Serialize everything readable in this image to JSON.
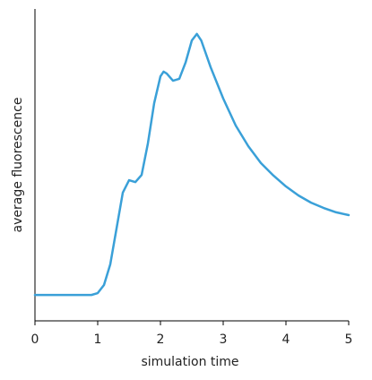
{
  "chart_data": {
    "type": "line",
    "xlabel": "simulation time",
    "ylabel": "average fluorescence",
    "x": [
      0,
      0.5,
      0.9,
      1.0,
      1.1,
      1.2,
      1.3,
      1.4,
      1.5,
      1.6,
      1.7,
      1.8,
      1.9,
      2.0,
      2.05,
      2.1,
      2.2,
      2.3,
      2.4,
      2.5,
      2.58,
      2.65,
      2.8,
      3.0,
      3.2,
      3.4,
      3.6,
      3.8,
      4.0,
      4.2,
      4.4,
      4.6,
      4.8,
      5.0
    ],
    "series": [
      {
        "name": "average fluorescence",
        "color": "#3aa0d8",
        "values": [
          0.083,
          0.083,
          0.083,
          0.089,
          0.115,
          0.181,
          0.296,
          0.411,
          0.451,
          0.445,
          0.468,
          0.569,
          0.698,
          0.784,
          0.799,
          0.793,
          0.77,
          0.776,
          0.828,
          0.899,
          0.92,
          0.899,
          0.813,
          0.713,
          0.626,
          0.56,
          0.506,
          0.466,
          0.431,
          0.402,
          0.379,
          0.362,
          0.348,
          0.339
        ]
      }
    ],
    "xlim": [
      0,
      5
    ],
    "xticks": [
      0,
      1,
      2,
      3,
      4,
      5
    ],
    "ylim": [
      0,
      1
    ]
  }
}
